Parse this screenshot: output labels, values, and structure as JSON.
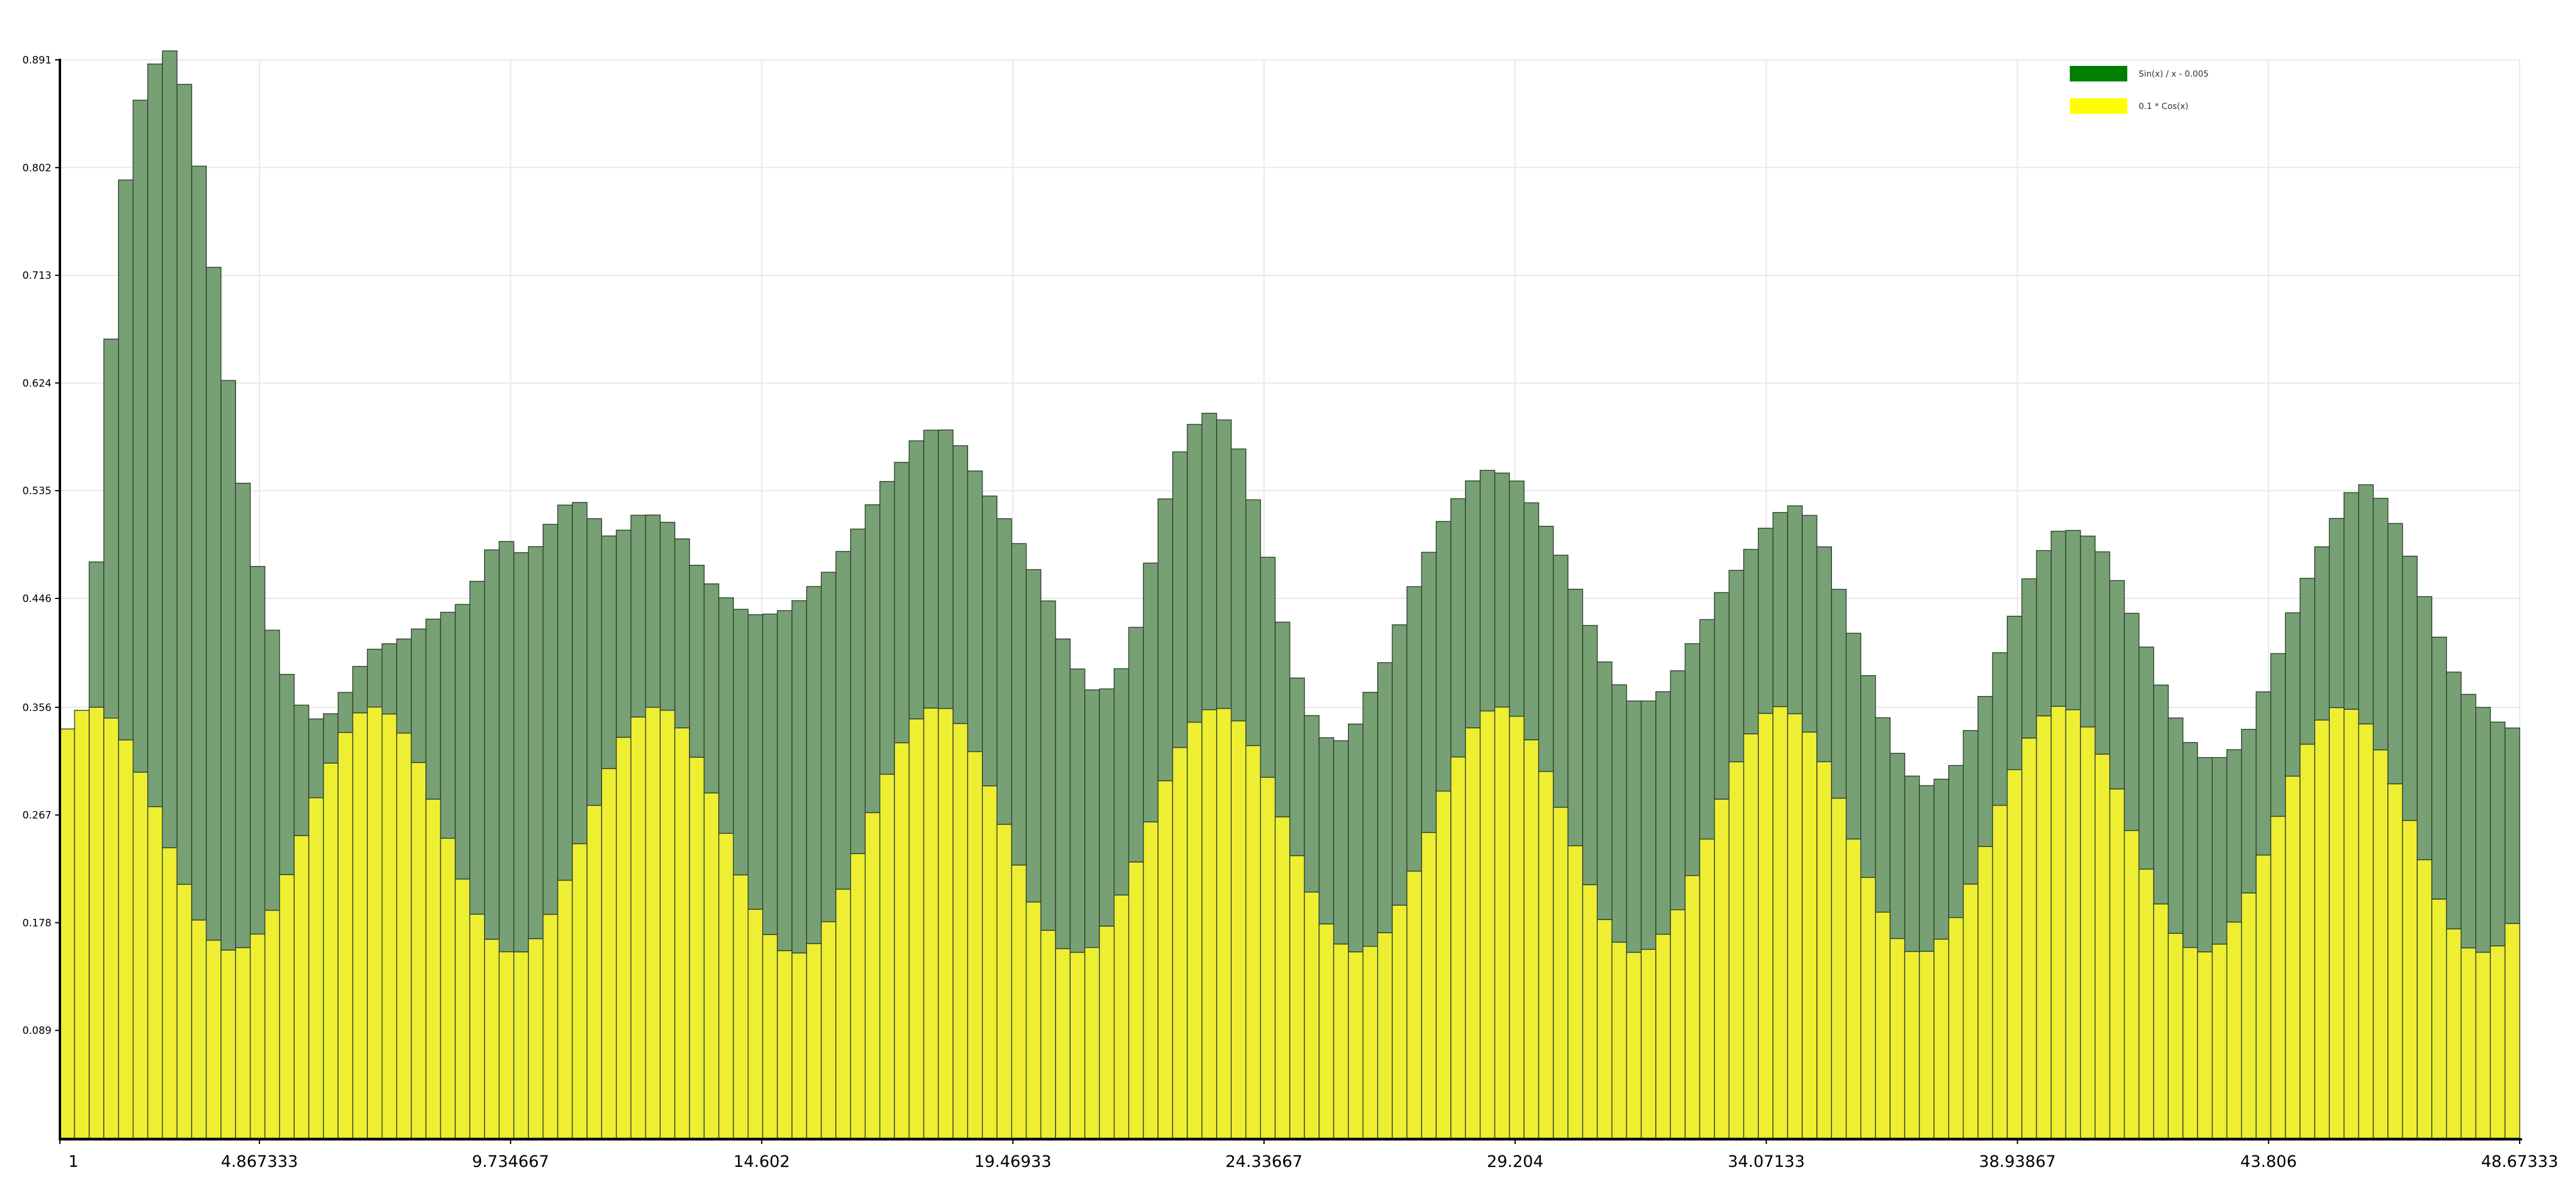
{
  "chart_data": {
    "type": "bar",
    "stacked": true,
    "title": "",
    "xlabel": "",
    "ylabel": "",
    "xlim": [
      1,
      48.673333
    ],
    "ylim": [
      0,
      0.891
    ],
    "x_ticks": [
      "1",
      "4.867333",
      "9.734667",
      "14.602",
      "19.46933",
      "24.33667",
      "29.204",
      "34.07133",
      "38.93867",
      "43.806",
      "48.67333"
    ],
    "y_ticks": [
      "0.089",
      "0.178",
      "0.267",
      "0.356",
      "0.446",
      "0.535",
      "0.624",
      "0.713",
      "0.802",
      "0.891"
    ],
    "grid": true,
    "legend_position": "top-right",
    "x_start": 1,
    "x_step": 0.31781,
    "series": [
      {
        "name": "Sin(x) / x - 0.005",
        "color": "#008000",
        "render_color": "#77a074",
        "values": [
          0,
          0,
          0.12,
          0.3132,
          0.4628,
          0.5553,
          0.6137,
          0.6585,
          0.6611,
          0.623,
          0.556,
          0.4707,
          0.3838,
          0.3038,
          0.2314,
          0.1655,
          0.1078,
          0.0651,
          0.0408,
          0.0331,
          0.0384,
          0.0478,
          0.058,
          0.0778,
          0.1103,
          0.1488,
          0.1867,
          0.2269,
          0.2751,
          0.3218,
          0.339,
          0.3299,
          0.3241,
          0.3223,
          0.31,
          0.282,
          0.2369,
          0.1922,
          0.1712,
          0.1667,
          0.1589,
          0.1553,
          0.1562,
          0.1587,
          0.1728,
          0.1947,
          0.2195,
          0.2434,
          0.2648,
          0.281,
          0.2911,
          0.2951,
          0.2888,
          0.2791,
          0.2682,
          0.2544,
          0.2419,
          0.2317,
          0.2298,
          0.2296,
          0.2302,
          0.2296,
          0.2319,
          0.2395,
          0.2526,
          0.2657,
          0.2747,
          0.2722,
          0.2559,
          0.2342,
          0.2129,
          0.196,
          0.187,
          0.194,
          0.2139,
          0.2329,
          0.2443,
          0.2461,
          0.245,
          0.2384,
          0.2247,
          0.2031,
          0.1818,
          0.1609,
          0.1468,
          0.1459,
          0.1539,
          0.168,
          0.1883,
          0.2099,
          0.2232,
          0.2317,
          0.2351,
          0.2315,
          0.2228,
          0.2134,
          0.2041,
          0.1988,
          0.1934,
          0.1944,
          0.1959,
          0.2026,
          0.2083,
          0.212,
          0.2142,
          0.2129,
          0.2127,
          0.2077,
          0.2052,
          0.2004,
          0.1975,
          0.1916,
          0.1814,
          0.1707,
          0.1582,
          0.1525,
          0.153,
          0.1604,
          0.1718,
          0.1791,
          0.1775,
          0.1726,
          0.17,
          0.1667,
          0.1607,
          0.1531,
          0.145,
          0.1369,
          0.1322,
          0.1256,
          0.1269,
          0.124,
          0.1261,
          0.1268,
          0.1316,
          0.1366,
          0.1447,
          0.1482,
          0.1577,
          0.1672,
          0.1722,
          0.1795,
          0.1835,
          0.1809,
          0.178,
          0.1694,
          0.1606,
          0.1542,
          0.1425,
          0.1352,
          0.1349,
          0.1345,
          0.135,
          0.1371,
          0.1431,
          0.1564,
          0.179,
          0.1976,
          0.2079,
          0.2151,
          0.2184,
          0.2175,
          0.2165,
          0.2122,
          0.2095,
          0.2023,
          0.185,
          0.1615
        ]
      },
      {
        "name": "0.1 * Cos(x)",
        "color": "#ffff00",
        "render_color": "#eeee33",
        "values": [
          0.3381,
          0.3535,
          0.3561,
          0.3471,
          0.329,
          0.3024,
          0.2739,
          0.2399,
          0.2097,
          0.1802,
          0.1636,
          0.1554,
          0.1574,
          0.1686,
          0.1883,
          0.2177,
          0.25,
          0.2813,
          0.3099,
          0.3352,
          0.3514,
          0.3562,
          0.3505,
          0.3347,
          0.3104,
          0.2801,
          0.2478,
          0.2141,
          0.185,
          0.1643,
          0.154,
          0.1539,
          0.1647,
          0.1849,
          0.2131,
          0.2433,
          0.275,
          0.3054,
          0.3312,
          0.348,
          0.356,
          0.3536,
          0.339,
          0.3147,
          0.2852,
          0.2518,
          0.2175,
          0.1891,
          0.1682,
          0.1549,
          0.153,
          0.1607,
          0.1788,
          0.2057,
          0.2351,
          0.269,
          0.3007,
          0.3267,
          0.3464,
          0.3554,
          0.355,
          0.3426,
          0.3194,
          0.2911,
          0.2593,
          0.2256,
          0.1951,
          0.1717,
          0.1566,
          0.1535,
          0.1575,
          0.1752,
          0.2009,
          0.2281,
          0.2613,
          0.2953,
          0.3228,
          0.3437,
          0.354,
          0.3551,
          0.3448,
          0.3244,
          0.2982,
          0.2655,
          0.2334,
          0.2033,
          0.177,
          0.1604,
          0.1539,
          0.1585,
          0.1697,
          0.1925,
          0.2206,
          0.2526,
          0.2868,
          0.315,
          0.339,
          0.353,
          0.3562,
          0.3486,
          0.3291,
          0.303,
          0.2734,
          0.2416,
          0.2094,
          0.1806,
          0.1619,
          0.1535,
          0.156,
          0.1685,
          0.1887,
          0.217,
          0.2471,
          0.2801,
          0.311,
          0.334,
          0.351,
          0.3566,
          0.3507,
          0.3355,
          0.3111,
          0.2809,
          0.2472,
          0.2155,
          0.1867,
          0.1649,
          0.1542,
          0.1544,
          0.1644,
          0.1823,
          0.2099,
          0.241,
          0.275,
          0.3045,
          0.3306,
          0.3489,
          0.3568,
          0.354,
          0.3398,
          0.3173,
          0.2885,
          0.2542,
          0.2223,
          0.1935,
          0.1692,
          0.1575,
          0.1539,
          0.1603,
          0.1785,
          0.2026,
          0.2339,
          0.2659,
          0.2991,
          0.3255,
          0.3455,
          0.3557,
          0.3544,
          0.3423,
          0.3208,
          0.2928,
          0.2625,
          0.23,
          0.1975,
          0.1729,
          0.1572,
          0.1536,
          0.1588,
          0.1774,
          0.2013
        ]
      }
    ]
  }
}
